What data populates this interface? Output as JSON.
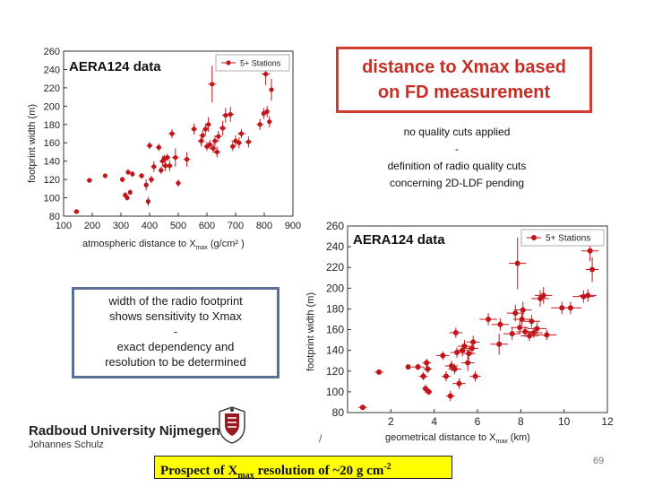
{
  "red_box": {
    "line1": "distance to Xmax based",
    "line2": "on FD measurement"
  },
  "notes": {
    "line1": "no quality cuts applied",
    "line2": "-",
    "line3": "definition of radio quality cuts",
    "line4": "concerning 2D-LDF pending"
  },
  "blue_box": {
    "line1": "width of the radio footprint",
    "line2": "shows sensitivity to Xmax",
    "line3": "-",
    "line4": "exact dependency and",
    "line5": "resolution to be determined"
  },
  "footer": {
    "university": "Radboud University Nijmegen",
    "author": "Johannes Schulz",
    "slash": "/",
    "page_number": "69",
    "prospect_pre": "Prospect of X",
    "prospect_sub": "max",
    "prospect_mid": " resolution of ~20 g cm",
    "prospect_sup": "-2"
  },
  "colors": {
    "marker": "#c0161b",
    "red_box": "#d23b31",
    "blue_box": "#5a7095",
    "highlight": "#ffff00"
  },
  "chart_data": [
    {
      "type": "scatter",
      "title": "AERA124 data",
      "legend": "5+ Stations",
      "legend_position": "top-right",
      "xlabel": "atmospheric distance to X",
      "xlabel_sub": "max",
      "xlabel_unit": " (g/cm² )",
      "ylabel": "footprint width (m)",
      "xlim": [
        100,
        900
      ],
      "ylim": [
        80,
        260
      ],
      "xticks": [
        100,
        200,
        300,
        400,
        500,
        600,
        700,
        800,
        900
      ],
      "yticks": [
        80,
        100,
        120,
        140,
        160,
        180,
        200,
        220,
        240,
        260
      ],
      "points": [
        {
          "x": 145,
          "y": 85,
          "xe": 10,
          "ye": 0
        },
        {
          "x": 190,
          "y": 119,
          "xe": 10,
          "ye": 0
        },
        {
          "x": 245,
          "y": 124,
          "xe": 0,
          "ye": 0
        },
        {
          "x": 305,
          "y": 120,
          "xe": 8,
          "ye": 3
        },
        {
          "x": 315,
          "y": 103,
          "xe": 8,
          "ye": 3
        },
        {
          "x": 322,
          "y": 100,
          "xe": 6,
          "ye": 3
        },
        {
          "x": 325,
          "y": 128,
          "xe": 8,
          "ye": 3
        },
        {
          "x": 332,
          "y": 106,
          "xe": 6,
          "ye": 3
        },
        {
          "x": 340,
          "y": 126,
          "xe": 6,
          "ye": 3
        },
        {
          "x": 372,
          "y": 124,
          "xe": 10,
          "ye": 3
        },
        {
          "x": 388,
          "y": 114,
          "xe": 8,
          "ye": 6
        },
        {
          "x": 395,
          "y": 96,
          "xe": 8,
          "ye": 5
        },
        {
          "x": 400,
          "y": 157,
          "xe": 10,
          "ye": 4
        },
        {
          "x": 406,
          "y": 120,
          "xe": 10,
          "ye": 4
        },
        {
          "x": 415,
          "y": 134,
          "xe": 10,
          "ye": 6
        },
        {
          "x": 432,
          "y": 155,
          "xe": 10,
          "ye": 4
        },
        {
          "x": 440,
          "y": 130,
          "xe": 10,
          "ye": 4
        },
        {
          "x": 445,
          "y": 140,
          "xe": 10,
          "ye": 6
        },
        {
          "x": 452,
          "y": 143,
          "xe": 10,
          "ye": 4
        },
        {
          "x": 455,
          "y": 135,
          "xe": 8,
          "ye": 6
        },
        {
          "x": 462,
          "y": 144,
          "xe": 10,
          "ye": 4
        },
        {
          "x": 470,
          "y": 135,
          "xe": 10,
          "ye": 6
        },
        {
          "x": 478,
          "y": 170,
          "xe": 12,
          "ye": 5
        },
        {
          "x": 490,
          "y": 144,
          "xe": 12,
          "ye": 10
        },
        {
          "x": 500,
          "y": 116,
          "xe": 8,
          "ye": 4
        },
        {
          "x": 530,
          "y": 142,
          "xe": 12,
          "ye": 8
        },
        {
          "x": 555,
          "y": 175,
          "xe": 10,
          "ye": 6
        },
        {
          "x": 580,
          "y": 162,
          "xe": 12,
          "ye": 6
        },
        {
          "x": 585,
          "y": 168,
          "xe": 12,
          "ye": 6
        },
        {
          "x": 595,
          "y": 175,
          "xe": 10,
          "ye": 6
        },
        {
          "x": 600,
          "y": 156,
          "xe": 10,
          "ye": 5
        },
        {
          "x": 605,
          "y": 180,
          "xe": 10,
          "ye": 8
        },
        {
          "x": 610,
          "y": 158,
          "xe": 10,
          "ye": 5
        },
        {
          "x": 618,
          "y": 224,
          "xe": 14,
          "ye": 20
        },
        {
          "x": 622,
          "y": 154,
          "xe": 10,
          "ye": 5
        },
        {
          "x": 628,
          "y": 162,
          "xe": 10,
          "ye": 6
        },
        {
          "x": 635,
          "y": 150,
          "xe": 12,
          "ye": 6
        },
        {
          "x": 640,
          "y": 167,
          "xe": 12,
          "ye": 6
        },
        {
          "x": 655,
          "y": 176,
          "xe": 12,
          "ye": 8
        },
        {
          "x": 665,
          "y": 190,
          "xe": 12,
          "ye": 8
        },
        {
          "x": 682,
          "y": 191,
          "xe": 12,
          "ye": 8
        },
        {
          "x": 690,
          "y": 156,
          "xe": 10,
          "ye": 5
        },
        {
          "x": 700,
          "y": 162,
          "xe": 14,
          "ye": 6
        },
        {
          "x": 712,
          "y": 160,
          "xe": 10,
          "ye": 6
        },
        {
          "x": 720,
          "y": 170,
          "xe": 14,
          "ye": 5
        },
        {
          "x": 745,
          "y": 161,
          "xe": 12,
          "ye": 6
        },
        {
          "x": 785,
          "y": 180,
          "xe": 12,
          "ye": 6
        },
        {
          "x": 798,
          "y": 192,
          "xe": 8,
          "ye": 6
        },
        {
          "x": 805,
          "y": 235,
          "xe": 14,
          "ye": 12
        },
        {
          "x": 810,
          "y": 194,
          "xe": 8,
          "ye": 6
        },
        {
          "x": 818,
          "y": 183,
          "xe": 8,
          "ye": 6
        },
        {
          "x": 825,
          "y": 218,
          "xe": 8,
          "ye": 12
        }
      ]
    },
    {
      "type": "scatter",
      "title": "AERA124 data",
      "legend": "5+ Stations",
      "legend_position": "top-right",
      "xlabel": "geometrical distance to X",
      "xlabel_sub": "max",
      "xlabel_unit": " (km)",
      "ylabel": "footprint width (m)",
      "xlim": [
        0,
        12
      ],
      "ylim": [
        80,
        260
      ],
      "xticks": [
        2,
        4,
        6,
        8,
        10,
        12
      ],
      "yticks": [
        80,
        100,
        120,
        140,
        160,
        180,
        200,
        220,
        240,
        260
      ],
      "points": [
        {
          "x": 0.7,
          "y": 85,
          "xe": 0.2,
          "ye": 0
        },
        {
          "x": 1.45,
          "y": 119,
          "xe": 0.2,
          "ye": 0
        },
        {
          "x": 2.8,
          "y": 124,
          "xe": 0,
          "ye": 0
        },
        {
          "x": 3.25,
          "y": 124,
          "xe": 0.3,
          "ye": 3
        },
        {
          "x": 3.5,
          "y": 115,
          "xe": 0.2,
          "ye": 4
        },
        {
          "x": 3.6,
          "y": 103,
          "xe": 0.15,
          "ye": 4
        },
        {
          "x": 3.65,
          "y": 128,
          "xe": 0.2,
          "ye": 4
        },
        {
          "x": 3.7,
          "y": 122,
          "xe": 0.2,
          "ye": 4
        },
        {
          "x": 3.75,
          "y": 100,
          "xe": 0.15,
          "ye": 3
        },
        {
          "x": 4.4,
          "y": 135,
          "xe": 0.3,
          "ye": 4
        },
        {
          "x": 4.55,
          "y": 115,
          "xe": 0.2,
          "ye": 5
        },
        {
          "x": 4.75,
          "y": 96,
          "xe": 0.2,
          "ye": 5
        },
        {
          "x": 4.8,
          "y": 125,
          "xe": 0.3,
          "ye": 5
        },
        {
          "x": 4.95,
          "y": 122,
          "xe": 0.3,
          "ye": 5
        },
        {
          "x": 5.0,
          "y": 157,
          "xe": 0.3,
          "ye": 5
        },
        {
          "x": 5.05,
          "y": 138,
          "xe": 0.3,
          "ye": 5
        },
        {
          "x": 5.15,
          "y": 108,
          "xe": 0.3,
          "ye": 5
        },
        {
          "x": 5.3,
          "y": 140,
          "xe": 0.3,
          "ye": 6
        },
        {
          "x": 5.4,
          "y": 144,
          "xe": 0.3,
          "ye": 6
        },
        {
          "x": 5.55,
          "y": 128,
          "xe": 0.3,
          "ye": 8
        },
        {
          "x": 5.6,
          "y": 137,
          "xe": 0.3,
          "ye": 6
        },
        {
          "x": 5.75,
          "y": 142,
          "xe": 0.3,
          "ye": 6
        },
        {
          "x": 5.8,
          "y": 148,
          "xe": 0.3,
          "ye": 6
        },
        {
          "x": 5.9,
          "y": 115,
          "xe": 0.25,
          "ye": 5
        },
        {
          "x": 6.5,
          "y": 170,
          "xe": 0.4,
          "ye": 6
        },
        {
          "x": 7.0,
          "y": 146,
          "xe": 0.4,
          "ye": 10
        },
        {
          "x": 7.05,
          "y": 165,
          "xe": 0.4,
          "ye": 6
        },
        {
          "x": 7.6,
          "y": 156,
          "xe": 0.4,
          "ye": 6
        },
        {
          "x": 7.75,
          "y": 176,
          "xe": 0.4,
          "ye": 8
        },
        {
          "x": 7.85,
          "y": 224,
          "xe": 0.4,
          "ye": 25
        },
        {
          "x": 7.95,
          "y": 162,
          "xe": 0.4,
          "ye": 6
        },
        {
          "x": 8.05,
          "y": 170,
          "xe": 0.4,
          "ye": 6
        },
        {
          "x": 8.1,
          "y": 179,
          "xe": 0.4,
          "ye": 8
        },
        {
          "x": 8.2,
          "y": 158,
          "xe": 0.4,
          "ye": 5
        },
        {
          "x": 8.4,
          "y": 154,
          "xe": 0.4,
          "ye": 5
        },
        {
          "x": 8.5,
          "y": 168,
          "xe": 0.4,
          "ye": 6
        },
        {
          "x": 8.6,
          "y": 157,
          "xe": 0.4,
          "ye": 5
        },
        {
          "x": 8.75,
          "y": 161,
          "xe": 0.45,
          "ye": 6
        },
        {
          "x": 8.9,
          "y": 190,
          "xe": 0.4,
          "ye": 8
        },
        {
          "x": 9.05,
          "y": 193,
          "xe": 0.4,
          "ye": 8
        },
        {
          "x": 9.2,
          "y": 155,
          "xe": 0.45,
          "ye": 5
        },
        {
          "x": 9.9,
          "y": 181,
          "xe": 0.5,
          "ye": 6
        },
        {
          "x": 10.3,
          "y": 181,
          "xe": 0.5,
          "ye": 6
        },
        {
          "x": 10.9,
          "y": 192,
          "xe": 0.5,
          "ye": 6
        },
        {
          "x": 11.1,
          "y": 193,
          "xe": 0.4,
          "ye": 6
        },
        {
          "x": 11.2,
          "y": 236,
          "xe": 0.4,
          "ye": 10
        },
        {
          "x": 11.3,
          "y": 218,
          "xe": 0.3,
          "ye": 12
        }
      ]
    }
  ]
}
